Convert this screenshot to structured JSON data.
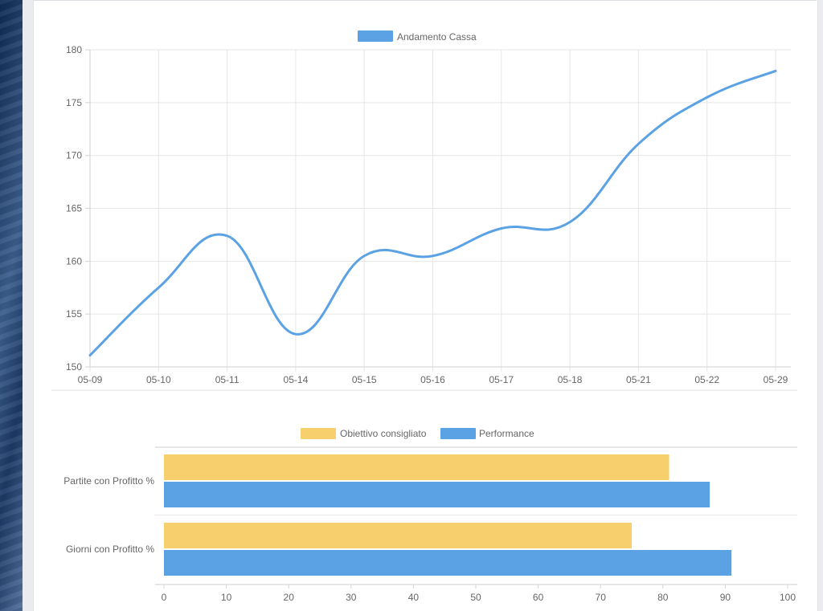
{
  "charts": {
    "line": {
      "legend_label": "Andamento Cassa",
      "legend_color": "#5aa2e4"
    },
    "bar": {
      "legend_items": [
        {
          "label": "Obiettivo consigliato",
          "color": "#f7cf6c"
        },
        {
          "label": "Performance",
          "color": "#5aa2e4"
        }
      ]
    }
  },
  "chart_data": [
    {
      "type": "line",
      "title": "",
      "xlabel": "",
      "ylabel": "",
      "categories": [
        "05-09",
        "05-10",
        "05-11",
        "05-14",
        "05-15",
        "05-16",
        "05-17",
        "05-18",
        "05-21",
        "05-22",
        "05-29"
      ],
      "series": [
        {
          "name": "Andamento Cassa",
          "color": "#5aa2e4",
          "values": [
            151.1,
            157.5,
            162.4,
            153.1,
            160.5,
            160.5,
            163.1,
            163.7,
            171.1,
            175.5,
            178.0
          ]
        }
      ],
      "ylim": [
        150,
        180
      ],
      "yticks": [
        150,
        155,
        160,
        165,
        170,
        175,
        180
      ],
      "grid": true,
      "legend": "top-center"
    },
    {
      "type": "bar",
      "orientation": "horizontal",
      "title": "",
      "xlabel": "",
      "ylabel": "",
      "categories": [
        "Partite con Profitto %",
        "Giorni con Profitto %"
      ],
      "series": [
        {
          "name": "Obiettivo consigliato",
          "color": "#f7cf6c",
          "values": [
            81,
            75
          ]
        },
        {
          "name": "Performance",
          "color": "#5aa2e4",
          "values": [
            87.5,
            91
          ]
        }
      ],
      "xlim": [
        0,
        100
      ],
      "xticks": [
        0,
        10,
        20,
        30,
        40,
        50,
        60,
        70,
        80,
        90,
        100
      ],
      "grid": true,
      "legend": "top-center"
    }
  ]
}
